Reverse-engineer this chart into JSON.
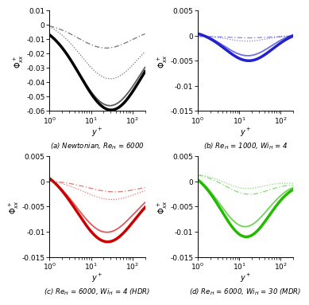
{
  "subplots": [
    {
      "caption": "(a) Newtonian, Re$_H$ = 6000",
      "color": "black",
      "ylim": [
        -0.06,
        0.01
      ],
      "yticks": [
        0.01,
        0,
        -0.01,
        -0.02,
        -0.03,
        -0.04,
        -0.05,
        -0.06
      ],
      "xlim": [
        1,
        200
      ],
      "lines": [
        {
          "style": "dashdot",
          "lw": 0.9,
          "peak": -0.016,
          "peak_x": 22,
          "start": 0.001,
          "end": -0.001,
          "sigma_f": 0.28
        },
        {
          "style": "dotted",
          "lw": 0.9,
          "peak": -0.038,
          "peak_x": 28,
          "start": 0.003,
          "end": -0.001,
          "sigma_f": 0.3
        },
        {
          "style": "solid",
          "lw": 1.3,
          "peak": -0.056,
          "peak_x": 28,
          "start": 0.001,
          "end": -0.001,
          "sigma_f": 0.32
        },
        {
          "style": "solid",
          "lw": 2.5,
          "peak": -0.059,
          "peak_x": 30,
          "start": 0.001,
          "end": -0.001,
          "sigma_f": 0.32
        }
      ],
      "alphas": [
        0.55,
        0.55,
        0.65,
        1.0
      ]
    },
    {
      "caption": "(b) Re$_H$ = 1000, Wi$_H$ = 4",
      "color": "#2222cc",
      "ylim": [
        -0.015,
        0.005
      ],
      "yticks": [
        0.005,
        0,
        -0.005,
        -0.01,
        -0.015
      ],
      "xlim": [
        1,
        200
      ],
      "lines": [
        {
          "style": "dashdot",
          "lw": 0.9,
          "peak": -0.0003,
          "peak_x": 18,
          "start": -0.0002,
          "end": -0.0001,
          "sigma_f": 0.2
        },
        {
          "style": "dotted",
          "lw": 0.9,
          "peak": -0.0012,
          "peak_x": 15,
          "start": 0.0001,
          "end": 0.0001,
          "sigma_f": 0.22
        },
        {
          "style": "solid",
          "lw": 1.3,
          "peak": -0.005,
          "peak_x": 16,
          "start": 0.001,
          "end": 0.001,
          "sigma_f": 0.25
        },
        {
          "style": "solid",
          "lw": 2.5,
          "peak": -0.006,
          "peak_x": 17,
          "start": 0.001,
          "end": 0.001,
          "sigma_f": 0.25
        }
      ],
      "alphas": [
        0.55,
        0.55,
        0.65,
        1.0
      ]
    },
    {
      "caption": "(c) Re$_H$ = 6000, Wi$_H$ = 4 (HDR)",
      "color": "#cc0000",
      "ylim": [
        -0.015,
        0.005
      ],
      "yticks": [
        0.005,
        0,
        -0.005,
        -0.01,
        -0.015
      ],
      "xlim": [
        1,
        200
      ],
      "lines": [
        {
          "style": "dashdot",
          "lw": 0.9,
          "peak": -0.002,
          "peak_x": 35,
          "start": 0.0002,
          "end": -0.0002,
          "sigma_f": 0.28
        },
        {
          "style": "dotted",
          "lw": 0.9,
          "peak": -0.0035,
          "peak_x": 30,
          "start": 0.0003,
          "end": -0.0003,
          "sigma_f": 0.28
        },
        {
          "style": "solid",
          "lw": 1.3,
          "peak": -0.011,
          "peak_x": 22,
          "start": 0.0022,
          "end": 0.0,
          "sigma_f": 0.3
        },
        {
          "style": "solid",
          "lw": 2.5,
          "peak": -0.013,
          "peak_x": 23,
          "start": 0.0025,
          "end": 0.0,
          "sigma_f": 0.3
        }
      ],
      "alphas": [
        0.55,
        0.55,
        0.65,
        1.0
      ]
    },
    {
      "caption": "(d) Re$_H$ = 6000, Wi$_H$ = 30 (MDR)",
      "color": "#22bb00",
      "ylim": [
        -0.015,
        0.005
      ],
      "yticks": [
        0.005,
        0,
        -0.005,
        -0.01,
        -0.015
      ],
      "xlim": [
        1,
        200
      ],
      "lines": [
        {
          "style": "dashdot",
          "lw": 0.9,
          "peak": -0.003,
          "peak_x": 15,
          "start": 0.0015,
          "end": -0.0005,
          "sigma_f": 0.22
        },
        {
          "style": "dotted",
          "lw": 0.9,
          "peak": -0.002,
          "peak_x": 13,
          "start": 0.0015,
          "end": -0.0003,
          "sigma_f": 0.2
        },
        {
          "style": "solid",
          "lw": 1.3,
          "peak": -0.01,
          "peak_x": 13,
          "start": 0.002,
          "end": 0.0,
          "sigma_f": 0.25
        },
        {
          "style": "solid",
          "lw": 2.5,
          "peak": -0.012,
          "peak_x": 14,
          "start": 0.002,
          "end": 0.0,
          "sigma_f": 0.25
        }
      ],
      "alphas": [
        0.55,
        0.55,
        0.65,
        1.0
      ]
    }
  ],
  "xlabel": "$y^+$",
  "ylabel": "$\\Phi^+_{xx}$"
}
